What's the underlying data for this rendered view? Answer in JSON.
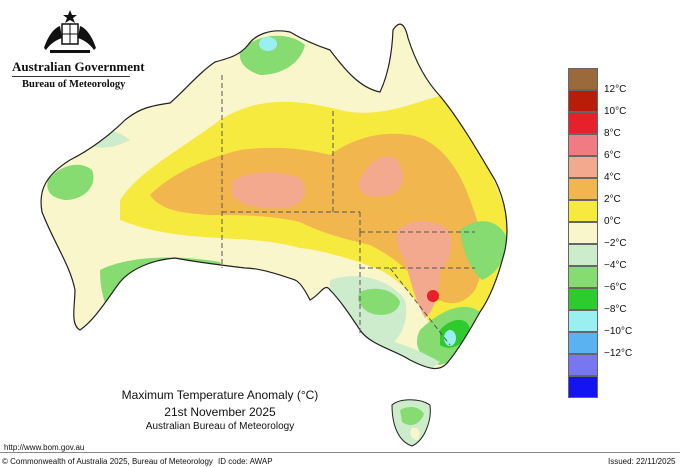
{
  "header": {
    "government": "Australian Government",
    "bureau": "Bureau of Meteorology"
  },
  "legend": {
    "items": [
      {
        "label": "",
        "color": "#9a6a3a"
      },
      {
        "label": "12°C",
        "color": "#b81d0a"
      },
      {
        "label": "10°C",
        "color": "#e8202a"
      },
      {
        "label": "8°C",
        "color": "#f07b82"
      },
      {
        "label": "6°C",
        "color": "#f3a98e"
      },
      {
        "label": "4°C",
        "color": "#f2b64e"
      },
      {
        "label": "2°C",
        "color": "#f6ea3e"
      },
      {
        "label": "0°C",
        "color": "#faf6cc"
      },
      {
        "label": "−2°C",
        "color": "#cdeccb"
      },
      {
        "label": "−4°C",
        "color": "#86dc70"
      },
      {
        "label": "−6°C",
        "color": "#2ecb2e"
      },
      {
        "label": "−8°C",
        "color": "#99f0f0"
      },
      {
        "label": "−10°C",
        "color": "#5ab2f0"
      },
      {
        "label": "−12°C",
        "color": "#7777f2"
      },
      {
        "label": "",
        "color": "#1414f0"
      }
    ]
  },
  "title": {
    "line1": "Maximum Temperature Anomaly (°C)",
    "line2": "21st November 2025",
    "line3": "Australian Bureau of Meteorology"
  },
  "footer": {
    "url": "http://www.bom.gov.au",
    "copyright": "© Commonwealth of Australia 2025, Bureau of Meteorology",
    "id_code": "ID code: AWAP",
    "issued": "Issued: 22/11/2025"
  },
  "colors": {
    "ocean": "#ffffff",
    "outline": "#222222",
    "state_border": "#555555"
  }
}
